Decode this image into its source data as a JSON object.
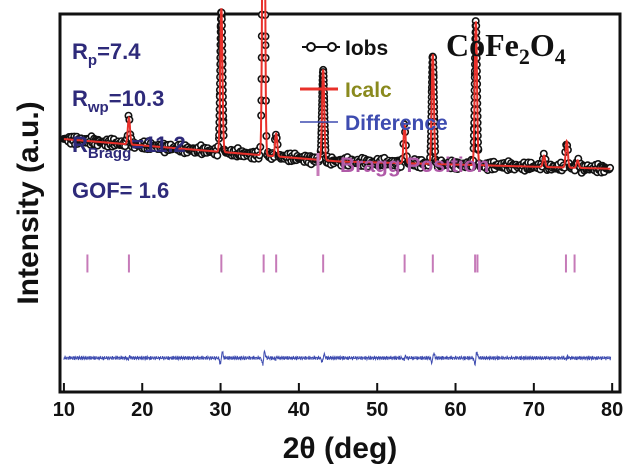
{
  "chart_data": {
    "type": "line",
    "xlabel": "2θ (deg)",
    "ylabel": "Intensity (a.u.)",
    "xlim": [
      9.5,
      81
    ],
    "ylim": [
      0,
      100
    ],
    "xticks": [
      10,
      20,
      30,
      40,
      50,
      60,
      70,
      80
    ],
    "grid": false,
    "legend_position": "top-right",
    "formula": {
      "base1": "CoFe",
      "sub1": "2",
      "base2": "O",
      "sub2": "4"
    },
    "stats": [
      {
        "base": "R",
        "sub": "p",
        "value": "=7.4"
      },
      {
        "base": "R",
        "sub": "wp",
        "value": "=10.3"
      },
      {
        "base": "R",
        "sub": "Bragg",
        "value": "=11.2"
      },
      {
        "base": "GOF= 1.6",
        "sub": "",
        "value": ""
      }
    ],
    "series": [
      {
        "name": "Iobs",
        "color": "#111111",
        "marker": "open-circle"
      },
      {
        "name": "Icalc",
        "color": "#e8302a",
        "label_color": "#8a8a1e"
      },
      {
        "name": "Difference",
        "color": "#3e4cb0",
        "label_color": "#3e4cb0"
      },
      {
        "name": "Bragg Position",
        "color": "#c67ab8",
        "label_color": "#b05aa8"
      }
    ],
    "baseline": {
      "start": 67,
      "mid_x": 45,
      "mid": 61,
      "end": 59
    },
    "peaks": [
      {
        "x": 18.3,
        "h": 7
      },
      {
        "x": 30.1,
        "h": 38
      },
      {
        "x": 35.5,
        "h": 126
      },
      {
        "x": 37.1,
        "h": 6
      },
      {
        "x": 43.1,
        "h": 24
      },
      {
        "x": 53.5,
        "h": 10
      },
      {
        "x": 57.1,
        "h": 29
      },
      {
        "x": 62.6,
        "h": 38
      },
      {
        "x": 71.3,
        "h": 3
      },
      {
        "x": 74.2,
        "h": 7
      },
      {
        "x": 75.6,
        "h": 2
      }
    ],
    "bragg_positions": [
      13.0,
      18.3,
      30.1,
      35.5,
      37.1,
      43.1,
      53.5,
      57.1,
      62.5,
      62.8,
      74.1,
      75.2
    ],
    "bragg_level": 34,
    "difference_level": 9
  }
}
